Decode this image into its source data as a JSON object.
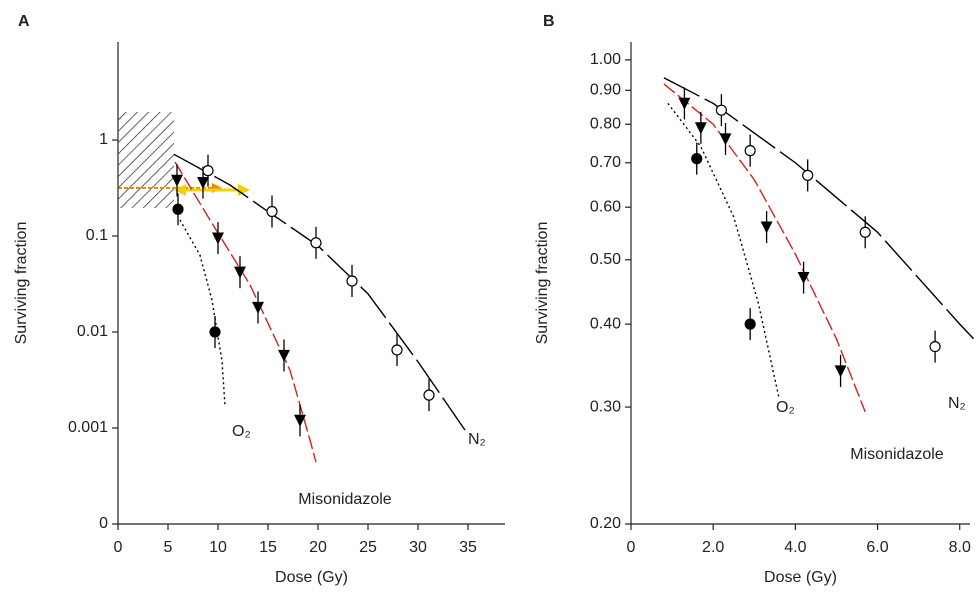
{
  "chart_data": [
    {
      "type": "scatter",
      "panel": "A",
      "xlabel": "Dose (Gy)",
      "ylabel": "Surviving fraction",
      "yscale": "log",
      "xlim": [
        0,
        38.7
      ],
      "ylim": [
        0.0001,
        10.5
      ],
      "xticks": [
        0,
        5,
        10,
        15,
        20,
        25,
        30,
        35
      ],
      "yticks": [
        1,
        0.1,
        0.01,
        0.001,
        {
          "value": 0.0001,
          "label": "0"
        }
      ],
      "series": [
        {
          "name": "O₂",
          "color": "#000000",
          "marker": "filled-circle",
          "line_style": "dotted",
          "x": [
            6,
            9.7
          ],
          "values": [
            0.19,
            0.01
          ],
          "fit_x": [
            6.2,
            8.2,
            9.4,
            10.4,
            10.7
          ],
          "fit_y": [
            0.147,
            0.063,
            0.0215,
            0.005,
            0.0017
          ]
        },
        {
          "name": "Misonidazole",
          "color": "#d62020",
          "marker": "triangle",
          "line_style": "dashed",
          "x": [
            5.9,
            8.5,
            10,
            12.2,
            14,
            16.6,
            18.2
          ],
          "values": [
            0.38,
            0.36,
            0.095,
            0.042,
            0.018,
            0.0057,
            0.0012
          ],
          "fit_x": [
            5.7,
            9.2,
            13.2,
            17.2,
            19.2,
            19.8
          ],
          "fit_y": [
            0.59,
            0.147,
            0.031,
            0.004,
            0.00075,
            0.00044
          ]
        },
        {
          "name": "N₂",
          "color": "#000000",
          "marker": "open-circle",
          "line_style": "long-dash",
          "x": [
            9,
            15.4,
            19.8,
            23.4,
            27.9,
            31.1
          ],
          "values": [
            0.48,
            0.18,
            0.085,
            0.034,
            0.0065,
            0.0022
          ],
          "fit_x": [
            5.6,
            11.2,
            15,
            20,
            25,
            30,
            34.7
          ],
          "fit_y": [
            0.71,
            0.34,
            0.18,
            0.079,
            0.025,
            0.0049,
            0.00095
          ]
        }
      ]
    },
    {
      "type": "scatter",
      "panel": "B",
      "xlabel": "Dose (Gy)",
      "ylabel": "Surviving fraction",
      "yscale": "log",
      "xlim": [
        0,
        8.25
      ],
      "ylim": [
        0.2,
        1.064
      ],
      "xticks": [
        0,
        {
          "value": 2,
          "label": "2.0"
        },
        {
          "value": 4,
          "label": "4.0"
        },
        {
          "value": 6,
          "label": "6.0"
        },
        {
          "value": 8,
          "label": "8.0"
        }
      ],
      "yticks": [
        {
          "value": 1,
          "label": "1.00"
        },
        {
          "value": 0.9,
          "label": "0.90"
        },
        {
          "value": 0.8,
          "label": "0.80"
        },
        {
          "value": 0.7,
          "label": "0.70"
        },
        {
          "value": 0.6,
          "label": "0.60"
        },
        {
          "value": 0.5,
          "label": "0.50"
        },
        {
          "value": 0.4,
          "label": "0.40"
        },
        {
          "value": 0.3,
          "label": "0.30"
        },
        {
          "value": 0.2,
          "label": "0.20"
        }
      ],
      "series": [
        {
          "name": "O₂",
          "color": "#000000",
          "marker": "filled-circle",
          "line_style": "dotted",
          "x": [
            1.6,
            2.9
          ],
          "values": [
            0.71,
            0.4
          ],
          "fit_x": [
            0.9,
            1.7,
            2.5,
            3.1,
            3.6
          ],
          "fit_y": [
            0.86,
            0.74,
            0.58,
            0.43,
            0.31
          ]
        },
        {
          "name": "Misonidazole",
          "color": "#d62020",
          "marker": "triangle",
          "line_style": "dashed",
          "x": [
            1.3,
            1.7,
            2.3,
            3.3,
            4.2,
            5.1
          ],
          "values": [
            0.86,
            0.79,
            0.76,
            0.56,
            0.47,
            0.34
          ],
          "fit_x": [
            0.8,
            2,
            3,
            4,
            5,
            5.7
          ],
          "fit_y": [
            0.92,
            0.8,
            0.66,
            0.51,
            0.38,
            0.295
          ]
        },
        {
          "name": "N₂",
          "color": "#000000",
          "marker": "open-circle",
          "line_style": "long-dash",
          "x": [
            2.2,
            2.9,
            4.3,
            5.7,
            7.4
          ],
          "values": [
            0.84,
            0.73,
            0.67,
            0.55,
            0.37
          ],
          "fit_x": [
            0.8,
            2,
            4,
            6,
            8,
            8.7
          ],
          "fit_y": [
            0.94,
            0.86,
            0.7,
            0.55,
            0.4,
            0.36
          ]
        }
      ]
    }
  ]
}
